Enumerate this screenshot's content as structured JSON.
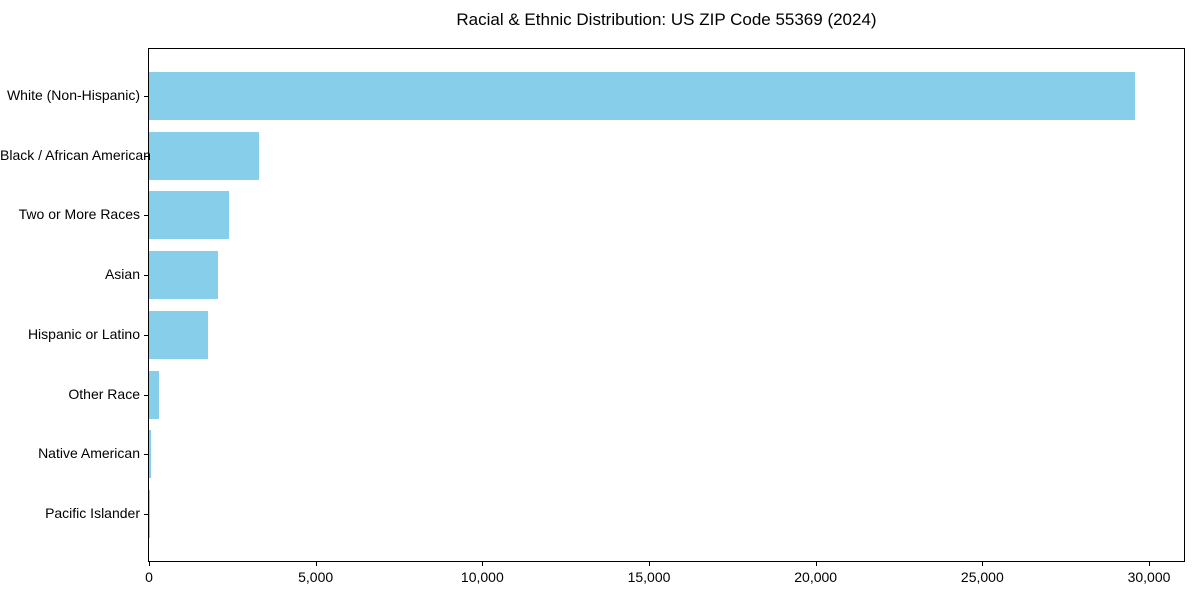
{
  "chart_data": {
    "type": "bar",
    "orientation": "horizontal",
    "title": "Racial & Ethnic Distribution: US ZIP Code 55369 (2024)",
    "categories": [
      "White (Non-Hispanic)",
      "Black / African American",
      "Two or More Races",
      "Asian",
      "Hispanic or Latino",
      "Other Race",
      "Native American",
      "Pacific Islander"
    ],
    "values": [
      29580,
      3290,
      2395,
      2080,
      1770,
      310,
      45,
      10
    ],
    "xlabel": "",
    "ylabel": "",
    "xlim": [
      0,
      31050
    ],
    "x_ticks": [
      0,
      5000,
      10000,
      15000,
      20000,
      25000,
      30000
    ],
    "x_tick_labels": [
      "0",
      "5,000",
      "10,000",
      "15,000",
      "20,000",
      "25,000",
      "30,000"
    ],
    "grid": false,
    "legend": null,
    "bar_color": "#87CEEB",
    "axis_color": "#000000",
    "text_color": "#000000",
    "background_color": "#ffffff"
  }
}
